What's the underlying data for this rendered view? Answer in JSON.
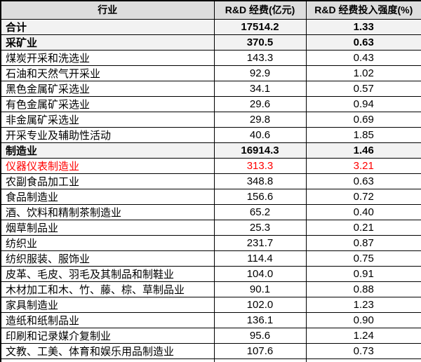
{
  "header": {
    "industry": "行业",
    "funding": "R&D 经费(亿元)",
    "intensity": "R&D 经费投入强度(%)"
  },
  "rows": [
    {
      "industry": "合计",
      "funding": "17514.2",
      "intensity": "1.33",
      "style": "section"
    },
    {
      "industry": "采矿业",
      "funding": "370.5",
      "intensity": "0.63",
      "style": "section"
    },
    {
      "industry": "煤炭开采和洗选业",
      "funding": "143.3",
      "intensity": "0.43",
      "style": "normal"
    },
    {
      "industry": "石油和天然气开采业",
      "funding": "92.9",
      "intensity": "1.02",
      "style": "normal"
    },
    {
      "industry": "黑色金属矿采选业",
      "funding": "34.1",
      "intensity": "0.57",
      "style": "normal"
    },
    {
      "industry": "有色金属矿采选业",
      "funding": "29.6",
      "intensity": "0.94",
      "style": "normal"
    },
    {
      "industry": "非金属矿采选业",
      "funding": "29.8",
      "intensity": "0.69",
      "style": "normal"
    },
    {
      "industry": "开采专业及辅助性活动",
      "funding": "40.6",
      "intensity": "1.85",
      "style": "normal"
    },
    {
      "industry": "制造业",
      "funding": "16914.3",
      "intensity": "1.46",
      "style": "section"
    },
    {
      "industry": "仪器仪表制造业",
      "funding": "313.3",
      "intensity": "3.21",
      "style": "highlight"
    },
    {
      "industry": "农副食品加工业",
      "funding": "348.8",
      "intensity": "0.63",
      "style": "normal"
    },
    {
      "industry": "食品制造业",
      "funding": "156.6",
      "intensity": "0.72",
      "style": "normal"
    },
    {
      "industry": "酒、饮料和精制茶制造业",
      "funding": "65.2",
      "intensity": "0.40",
      "style": "normal"
    },
    {
      "industry": "烟草制品业",
      "funding": "25.3",
      "intensity": "0.21",
      "style": "normal"
    },
    {
      "industry": "纺织业",
      "funding": "231.7",
      "intensity": "0.87",
      "style": "normal"
    },
    {
      "industry": "纺织服装、服饰业",
      "funding": "114.4",
      "intensity": "0.75",
      "style": "normal"
    },
    {
      "industry": "皮革、毛皮、羽毛及其制品和制鞋业",
      "funding": "104.0",
      "intensity": "0.91",
      "style": "normal"
    },
    {
      "industry": "木材加工和木、竹、藤、棕、草制品业",
      "funding": "90.1",
      "intensity": "0.88",
      "style": "normal"
    },
    {
      "industry": "家具制造业",
      "funding": "102.0",
      "intensity": "1.23",
      "style": "normal"
    },
    {
      "industry": "造纸和纸制品业",
      "funding": "136.1",
      "intensity": "0.90",
      "style": "normal"
    },
    {
      "industry": "印刷和记录媒介复制业",
      "funding": "95.6",
      "intensity": "1.24",
      "style": "normal"
    },
    {
      "industry": "文教、工美、体育和娱乐用品制造业",
      "funding": "107.6",
      "intensity": "0.73",
      "style": "normal"
    }
  ],
  "colors": {
    "header_bg": "#DDDDDD",
    "section_bg": "#F2F2F2",
    "highlight_text": "#FF0000",
    "border": "#000000"
  },
  "chart_data": {
    "type": "table",
    "columns": [
      "行业",
      "R&D 经费(亿元)",
      "R&D 经费投入强度(%)"
    ],
    "categories": [
      "合计",
      "采矿业",
      "煤炭开采和洗选业",
      "石油和天然气开采业",
      "黑色金属矿采选业",
      "有色金属矿采选业",
      "非金属矿采选业",
      "开采专业及辅助性活动",
      "制造业",
      "仪器仪表制造业",
      "农副食品加工业",
      "食品制造业",
      "酒、饮料和精制茶制造业",
      "烟草制品业",
      "纺织业",
      "纺织服装、服饰业",
      "皮革、毛皮、羽毛及其制品和制鞋业",
      "木材加工和木、竹、藤、棕、草制品业",
      "家具制造业",
      "造纸和纸制品业",
      "印刷和记录媒介复制业",
      "文教、工美、体育和娱乐用品制造业"
    ],
    "series": [
      {
        "name": "R&D 经费(亿元)",
        "values": [
          17514.2,
          370.5,
          143.3,
          92.9,
          34.1,
          29.6,
          29.8,
          40.6,
          16914.3,
          313.3,
          348.8,
          156.6,
          65.2,
          25.3,
          231.7,
          114.4,
          104.0,
          90.1,
          102.0,
          136.1,
          95.6,
          107.6
        ]
      },
      {
        "name": "R&D 经费投入强度(%)",
        "values": [
          1.33,
          0.63,
          0.43,
          1.02,
          0.57,
          0.94,
          0.69,
          1.85,
          1.46,
          3.21,
          0.63,
          0.72,
          0.4,
          0.21,
          0.87,
          0.75,
          0.91,
          0.88,
          1.23,
          0.9,
          1.24,
          0.73
        ]
      }
    ],
    "notes": {
      "bold_section_rows": [
        "合计",
        "采矿业",
        "制造业"
      ],
      "red_highlighted_row": "仪器仪表制造业"
    }
  }
}
